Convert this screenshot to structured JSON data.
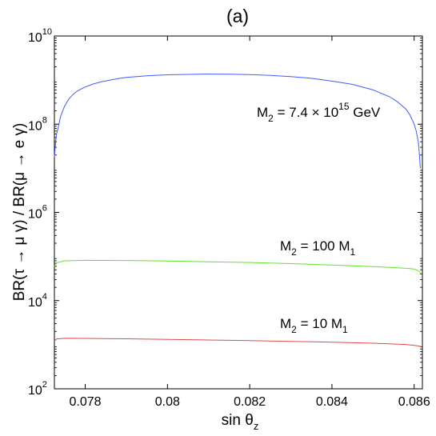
{
  "chart_data": {
    "type": "line",
    "title": "(a)",
    "xlabel": "sin θz",
    "ylabel": "BR(τ → μ γ) / BR(μ → e γ)",
    "xlim": [
      0.07725,
      0.0862
    ],
    "ylim": [
      100,
      10000000000
    ],
    "yscale": "log",
    "grid": false,
    "x_ticks": [
      {
        "value": 0.078,
        "label": "0.078"
      },
      {
        "value": 0.08,
        "label": "0.08"
      },
      {
        "value": 0.082,
        "label": "0.082"
      },
      {
        "value": 0.084,
        "label": "0.084"
      },
      {
        "value": 0.086,
        "label": "0.086"
      }
    ],
    "y_ticks": [
      {
        "value": 100,
        "base": "10",
        "exp": "2"
      },
      {
        "value": 10000,
        "base": "10",
        "exp": "4"
      },
      {
        "value": 1000000,
        "base": "10",
        "exp": "6"
      },
      {
        "value": 100000000,
        "base": "10",
        "exp": "8"
      },
      {
        "value": 10000000000,
        "base": "10",
        "exp": "10"
      }
    ],
    "series": [
      {
        "color": "#3d5bff",
        "label": {
          "pre": "M",
          "sub": "2",
          "mid": " = 7.4 × 10",
          "sup": "15",
          "post": " GeV"
        },
        "x": [
          0.07725,
          0.07728,
          0.0773,
          0.07735,
          0.0774,
          0.0775,
          0.0776,
          0.0777,
          0.0778,
          0.0779,
          0.078,
          0.0782,
          0.0784,
          0.0786,
          0.0788,
          0.079,
          0.0795,
          0.08,
          0.0805,
          0.081,
          0.0815,
          0.082,
          0.0825,
          0.083,
          0.0835,
          0.084,
          0.0845,
          0.085,
          0.0852,
          0.0854,
          0.0856,
          0.0858,
          0.0859,
          0.086,
          0.08605,
          0.0861,
          0.08612,
          0.08615
        ],
        "y": [
          18000000,
          40000000,
          58000000,
          90000000,
          150000000,
          260000000,
          370000000,
          470000000,
          560000000,
          630000000,
          700000000,
          820000000,
          920000000,
          1000000000,
          1080000000,
          1150000000,
          1250000000,
          1320000000,
          1350000000,
          1370000000,
          1360000000,
          1330000000,
          1280000000,
          1200000000,
          1100000000,
          950000000,
          800000000,
          600000000,
          500000000,
          420000000,
          320000000,
          220000000,
          160000000,
          100000000,
          70000000,
          40000000,
          25000000,
          10000000
        ]
      },
      {
        "color": "#66e033",
        "label": {
          "pre": "M",
          "sub": "2",
          "mid": " = 100 M",
          "sub2": "1"
        },
        "x": [
          0.07725,
          0.0773,
          0.0775,
          0.078,
          0.079,
          0.08,
          0.081,
          0.082,
          0.083,
          0.084,
          0.085,
          0.0855,
          0.0858,
          0.086,
          0.08612,
          0.08618
        ],
        "y": [
          60000,
          72000,
          80000,
          82000,
          81000,
          79000,
          76000,
          73000,
          69000,
          64000,
          59000,
          56000,
          54000,
          52000,
          46000,
          40000
        ]
      },
      {
        "color": "#e04848",
        "label": {
          "pre": "M",
          "sub": "2",
          "mid": " = 10 M",
          "sub2": "1"
        },
        "x": [
          0.07725,
          0.0773,
          0.0775,
          0.078,
          0.079,
          0.08,
          0.081,
          0.082,
          0.083,
          0.084,
          0.085,
          0.0855,
          0.0858,
          0.086,
          0.08615,
          0.08618
        ],
        "y": [
          1200,
          1350,
          1400,
          1390,
          1360,
          1320,
          1280,
          1240,
          1190,
          1140,
          1080,
          1040,
          1010,
          970,
          920,
          880
        ]
      }
    ]
  }
}
